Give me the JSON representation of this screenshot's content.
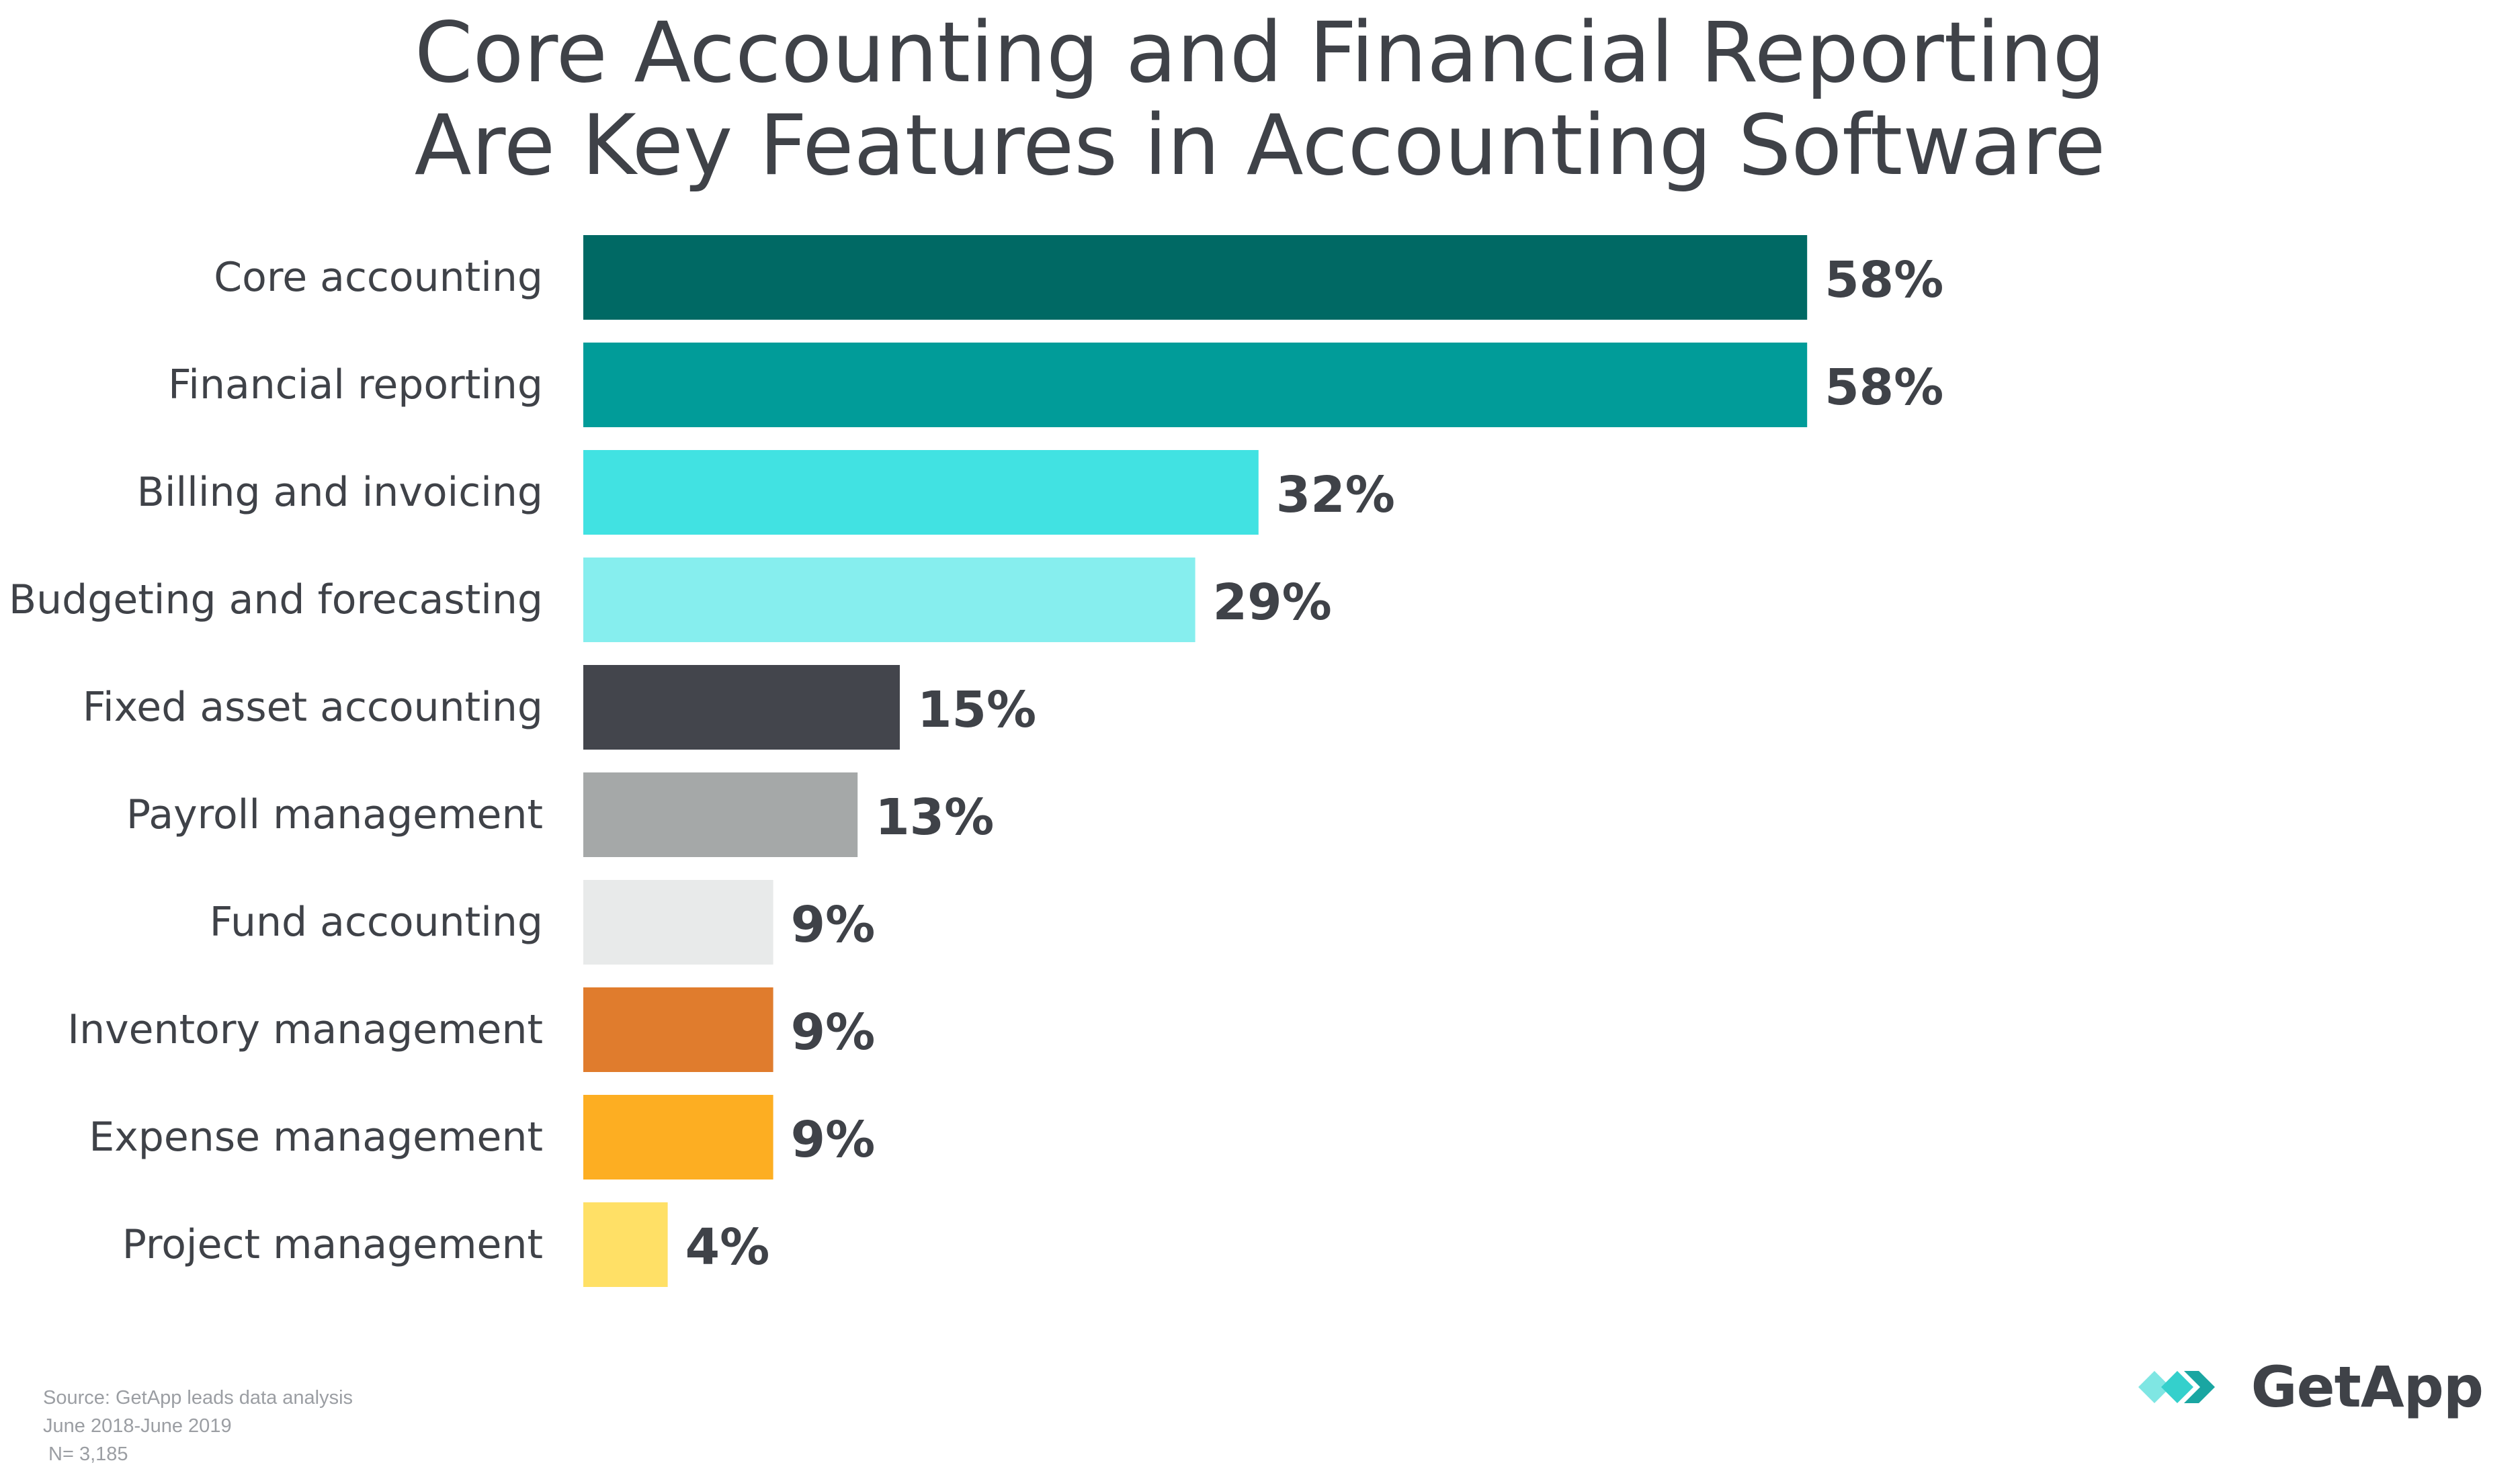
{
  "title": {
    "line1": "Core Accounting and Financial Reporting",
    "line2": "Are Key Features in Accounting Software"
  },
  "chart_data": {
    "type": "bar",
    "orientation": "horizontal",
    "categories": [
      "Core accounting",
      "Financial reporting",
      "Billing and invoicing",
      "Budgeting and forecasting",
      "Fixed asset accounting",
      "Payroll management",
      "Fund accounting",
      "Inventory management",
      "Expense management",
      "Project management"
    ],
    "values": [
      58,
      58,
      32,
      29,
      15,
      13,
      9,
      9,
      9,
      4
    ],
    "value_labels": [
      "58%",
      "58%",
      "32%",
      "29%",
      "15%",
      "13%",
      "9%",
      "9%",
      "9%",
      "4%"
    ],
    "colors": [
      "#006964",
      "#019c99",
      "#41e2e2",
      "#86eeee",
      "#43454c",
      "#a5a8a8",
      "#e8eaea",
      "#e07c2d",
      "#fdae22",
      "#ffe066"
    ],
    "unit": "%",
    "xlim": [
      0,
      100
    ],
    "grid": false,
    "legend": "none"
  },
  "source": {
    "line1": "Source: GetApp leads data analysis",
    "line2": "June 2018-June 2019",
    "line3": " N= 3,185"
  },
  "brand": {
    "name": "GetApp",
    "accent_color": "#34d0cc",
    "icon": "getapp-chevrons-icon"
  }
}
